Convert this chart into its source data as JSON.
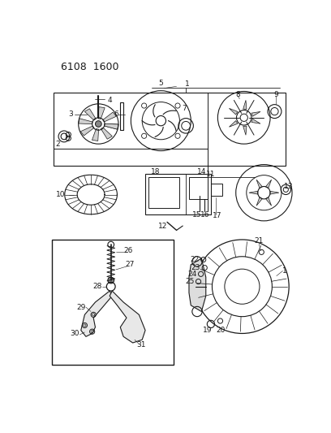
{
  "title": "6108 1600",
  "bg_color": "#ffffff",
  "line_color": "#1a1a1a",
  "figsize": [
    4.08,
    5.33
  ],
  "dpi": 100
}
